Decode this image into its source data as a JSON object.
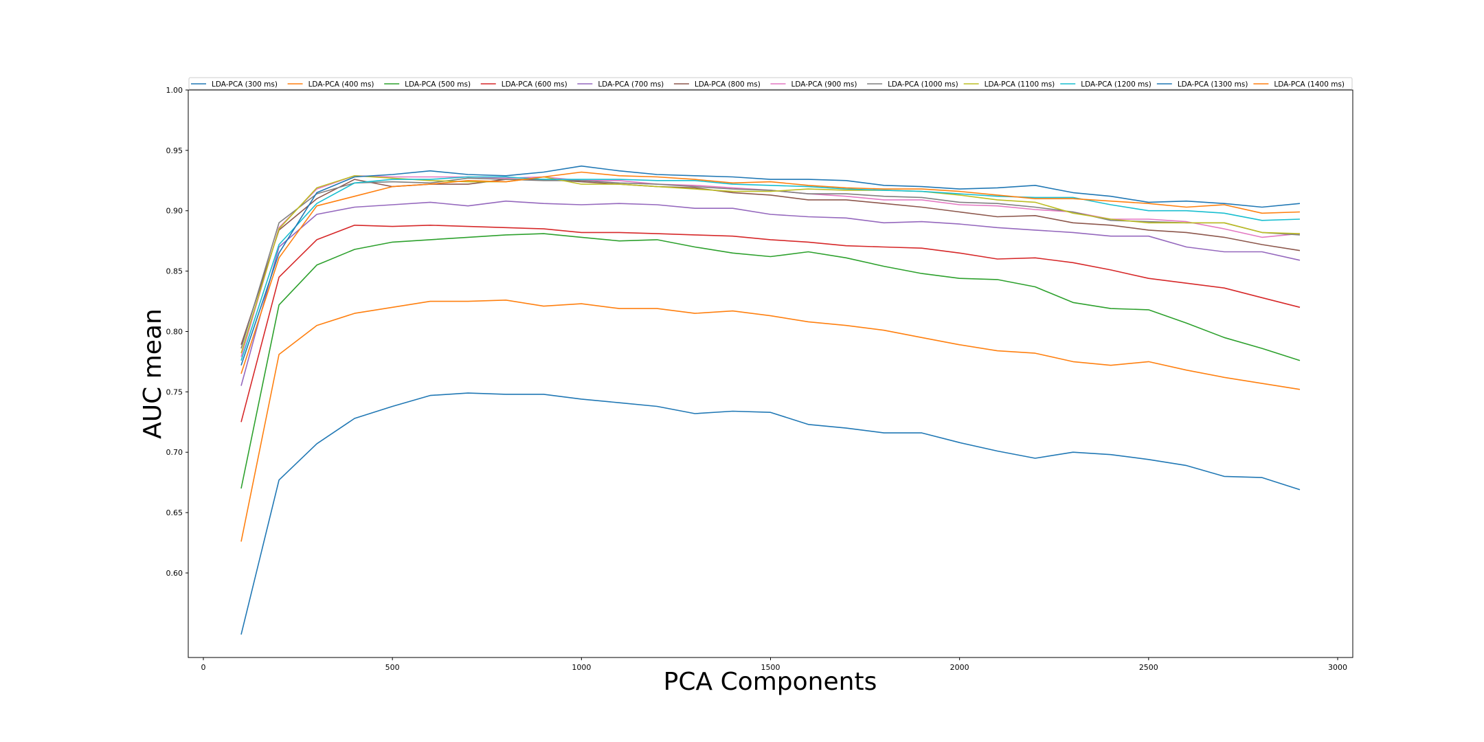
{
  "chart_data": {
    "type": "line",
    "title": "",
    "xlabel": "PCA Components",
    "ylabel": "AUC mean",
    "xlim": [
      -40,
      3040
    ],
    "ylim": [
      0.53,
      1.0
    ],
    "xticks": [
      0,
      500,
      1000,
      1500,
      2000,
      2500,
      3000
    ],
    "xtick_labels": [
      "0",
      "500",
      "1000",
      "1500",
      "2000",
      "2500",
      "3000"
    ],
    "yticks": [
      0.6,
      0.65,
      0.7,
      0.75,
      0.8,
      0.85,
      0.9,
      0.95,
      1.0
    ],
    "ytick_labels": [
      "0.60",
      "0.65",
      "0.70",
      "0.75",
      "0.80",
      "0.85",
      "0.90",
      "0.95",
      "1.00"
    ],
    "grid": false,
    "legend": "top, single row",
    "x": [
      100,
      200,
      300,
      400,
      500,
      600,
      700,
      800,
      900,
      1000,
      1100,
      1200,
      1300,
      1400,
      1500,
      1600,
      1700,
      1800,
      1900,
      2000,
      2100,
      2200,
      2300,
      2400,
      2500,
      2600,
      2700,
      2800,
      2900
    ],
    "series": [
      {
        "name": "LDA-PCA (300 ms)",
        "color": "#1f77b4",
        "values": [
          0.549,
          0.677,
          0.707,
          0.728,
          0.738,
          0.747,
          0.749,
          0.748,
          0.748,
          0.744,
          0.741,
          0.738,
          0.732,
          0.734,
          0.733,
          0.723,
          0.72,
          0.716,
          0.716,
          0.708,
          0.701,
          0.695,
          0.7,
          0.698,
          0.694,
          0.689,
          0.68,
          0.679,
          0.669
        ]
      },
      {
        "name": "LDA-PCA (400 ms)",
        "color": "#ff7f0e",
        "values": [
          0.626,
          0.781,
          0.805,
          0.815,
          0.82,
          0.825,
          0.825,
          0.826,
          0.821,
          0.823,
          0.819,
          0.819,
          0.815,
          0.817,
          0.813,
          0.808,
          0.805,
          0.801,
          0.795,
          0.789,
          0.784,
          0.782,
          0.775,
          0.772,
          0.775,
          0.768,
          0.762,
          0.757,
          0.752
        ]
      },
      {
        "name": "LDA-PCA (500 ms)",
        "color": "#2ca02c",
        "values": [
          0.67,
          0.822,
          0.855,
          0.868,
          0.874,
          0.876,
          0.878,
          0.88,
          0.881,
          0.878,
          0.875,
          0.876,
          0.87,
          0.865,
          0.862,
          0.866,
          0.861,
          0.854,
          0.848,
          0.844,
          0.843,
          0.837,
          0.824,
          0.819,
          0.818,
          0.807,
          0.795,
          0.786,
          0.776
        ]
      },
      {
        "name": "LDA-PCA (600 ms)",
        "color": "#d62728",
        "values": [
          0.725,
          0.845,
          0.876,
          0.888,
          0.887,
          0.888,
          0.887,
          0.886,
          0.885,
          0.882,
          0.882,
          0.881,
          0.88,
          0.879,
          0.876,
          0.874,
          0.871,
          0.87,
          0.869,
          0.865,
          0.86,
          0.861,
          0.857,
          0.851,
          0.844,
          0.84,
          0.836,
          0.828,
          0.82
        ]
      },
      {
        "name": "LDA-PCA (700 ms)",
        "color": "#9467bd",
        "values": [
          0.755,
          0.87,
          0.897,
          0.903,
          0.905,
          0.907,
          0.904,
          0.908,
          0.906,
          0.905,
          0.906,
          0.905,
          0.902,
          0.902,
          0.897,
          0.895,
          0.894,
          0.89,
          0.891,
          0.889,
          0.886,
          0.884,
          0.882,
          0.879,
          0.879,
          0.87,
          0.866,
          0.866,
          0.859
        ]
      },
      {
        "name": "LDA-PCA (800 ms)",
        "color": "#8c564b",
        "values": [
          0.789,
          0.884,
          0.91,
          0.926,
          0.92,
          0.922,
          0.922,
          0.926,
          0.926,
          0.924,
          0.922,
          0.92,
          0.919,
          0.915,
          0.913,
          0.909,
          0.909,
          0.906,
          0.903,
          0.899,
          0.895,
          0.896,
          0.89,
          0.888,
          0.884,
          0.882,
          0.878,
          0.872,
          0.867
        ]
      },
      {
        "name": "LDA-PCA (900 ms)",
        "color": "#e377c2",
        "values": [
          0.779,
          0.886,
          0.918,
          0.929,
          0.928,
          0.928,
          0.928,
          0.927,
          0.928,
          0.925,
          0.925,
          0.922,
          0.921,
          0.919,
          0.917,
          0.914,
          0.912,
          0.909,
          0.909,
          0.905,
          0.904,
          0.901,
          0.899,
          0.893,
          0.893,
          0.891,
          0.885,
          0.878,
          0.881
        ]
      },
      {
        "name": "LDA-PCA (1000 ms)",
        "color": "#7f7f7f",
        "values": [
          0.786,
          0.89,
          0.914,
          0.923,
          0.924,
          0.923,
          0.927,
          0.926,
          0.925,
          0.925,
          0.923,
          0.922,
          0.92,
          0.918,
          0.917,
          0.914,
          0.914,
          0.912,
          0.911,
          0.907,
          0.906,
          0.903,
          0.899,
          0.892,
          0.891,
          0.89,
          0.89,
          0.882,
          0.88
        ]
      },
      {
        "name": "LDA-PCA (1100 ms)",
        "color": "#bcbd22",
        "values": [
          0.782,
          0.885,
          0.919,
          0.929,
          0.927,
          0.925,
          0.924,
          0.924,
          0.928,
          0.922,
          0.922,
          0.92,
          0.918,
          0.916,
          0.916,
          0.918,
          0.917,
          0.917,
          0.916,
          0.913,
          0.909,
          0.907,
          0.898,
          0.893,
          0.89,
          0.89,
          0.89,
          0.882,
          0.881
        ]
      },
      {
        "name": "LDA-PCA (1200 ms)",
        "color": "#17becf",
        "values": [
          0.776,
          0.872,
          0.906,
          0.923,
          0.926,
          0.926,
          0.928,
          0.928,
          0.926,
          0.926,
          0.926,
          0.925,
          0.925,
          0.922,
          0.921,
          0.92,
          0.918,
          0.917,
          0.916,
          0.914,
          0.912,
          0.911,
          0.911,
          0.905,
          0.9,
          0.9,
          0.898,
          0.892,
          0.893
        ]
      },
      {
        "name": "LDA-PCA (1300 ms)",
        "color": "#1f77b4",
        "values": [
          0.772,
          0.865,
          0.915,
          0.928,
          0.93,
          0.933,
          0.93,
          0.929,
          0.932,
          0.937,
          0.933,
          0.93,
          0.929,
          0.928,
          0.926,
          0.926,
          0.925,
          0.921,
          0.92,
          0.918,
          0.919,
          0.921,
          0.915,
          0.912,
          0.907,
          0.908,
          0.906,
          0.903,
          0.906
        ]
      },
      {
        "name": "LDA-PCA (1400 ms)",
        "color": "#ff7f0e",
        "values": [
          0.765,
          0.861,
          0.904,
          0.912,
          0.92,
          0.922,
          0.925,
          0.924,
          0.928,
          0.932,
          0.929,
          0.928,
          0.926,
          0.923,
          0.924,
          0.921,
          0.919,
          0.918,
          0.918,
          0.916,
          0.913,
          0.91,
          0.91,
          0.908,
          0.906,
          0.903,
          0.905,
          0.898,
          0.899
        ]
      }
    ]
  }
}
